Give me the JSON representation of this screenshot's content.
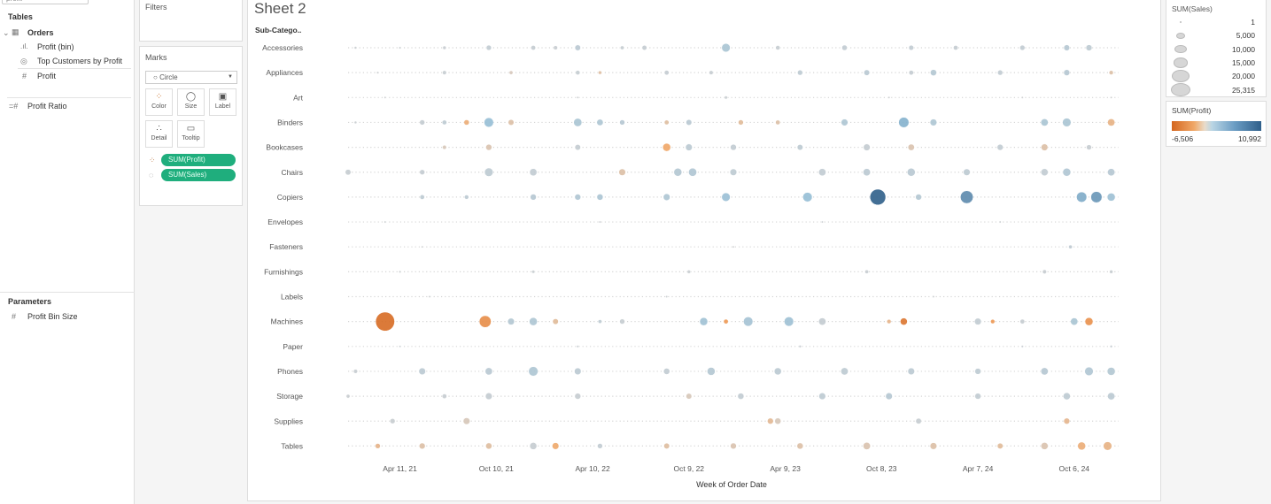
{
  "data_pane": {
    "search_value": "profit",
    "tables_heading": "Tables",
    "table_name": "Orders",
    "fields": [
      {
        "label": "Profit (bin)",
        "icon": "bin-bar-icon"
      },
      {
        "label": "Top Customers by Profit",
        "icon": "set-icon"
      },
      {
        "label": "Profit",
        "icon": "measure-hash-icon"
      }
    ],
    "calc_field": "Profit Ratio",
    "parameters_heading": "Parameters",
    "parameter": "Profit Bin Size"
  },
  "filters": {
    "title": "Filters"
  },
  "marks": {
    "title": "Marks",
    "mark_type": "Circle",
    "buttons": [
      "Color",
      "Size",
      "Label",
      "Detail",
      "Tooltip"
    ],
    "pills": [
      {
        "label": "SUM(Profit)",
        "icon": "color-icon"
      },
      {
        "label": "SUM(Sales)",
        "icon": "size-icon"
      }
    ]
  },
  "sheet": {
    "title": "Sheet 2",
    "row_header": "Sub-Catego.."
  },
  "legends": {
    "size_title": "SUM(Sales)",
    "size_values": [
      "1",
      "5,000",
      "10,000",
      "15,000",
      "20,000",
      "25,315"
    ],
    "color_title": "SUM(Profit)",
    "color_min": "-6,506",
    "color_max": "10,992",
    "colors": {
      "negative": "#d4661f",
      "neutral": "#cfcfcf",
      "positive": "#2f5f8a"
    }
  },
  "chart_data": {
    "type": "scatter",
    "xlabel": "Week of Order Date",
    "ylabel": "Sub-Catego..",
    "x_ticks": [
      "Apr 11, 21",
      "Oct 10, 21",
      "Apr 10, 22",
      "Oct 9, 22",
      "Apr 9, 23",
      "Oct 8, 23",
      "Apr 7, 24",
      "Oct 6, 24"
    ],
    "x_tick_dates": [
      "2021-04-11",
      "2021-10-10",
      "2022-04-10",
      "2022-10-09",
      "2023-04-09",
      "2023-10-08",
      "2024-04-07",
      "2024-10-06"
    ],
    "xlim": [
      "2021-01-03",
      "2024-12-29"
    ],
    "size_range": [
      1,
      25315
    ],
    "color_range": [
      -6506,
      10992
    ],
    "fields": [
      "week",
      "sales",
      "profit"
    ],
    "categories": [
      {
        "name": "Accessories",
        "points": [
          [
            "2021-01-17",
            400,
            40
          ],
          [
            "2021-04-11",
            300,
            30
          ],
          [
            "2021-07-04",
            700,
            80
          ],
          [
            "2021-09-26",
            1500,
            200
          ],
          [
            "2021-12-19",
            1200,
            150
          ],
          [
            "2022-01-30",
            900,
            90
          ],
          [
            "2022-03-13",
            1800,
            450
          ],
          [
            "2022-06-05",
            800,
            120
          ],
          [
            "2022-07-17",
            1300,
            160
          ],
          [
            "2022-12-18",
            4000,
            1200
          ],
          [
            "2023-03-26",
            1100,
            100
          ],
          [
            "2023-07-30",
            1600,
            200
          ],
          [
            "2023-12-03",
            1400,
            200
          ],
          [
            "2024-02-25",
            1200,
            150
          ],
          [
            "2024-06-30",
            1500,
            200
          ],
          [
            "2024-09-22",
            1900,
            600
          ],
          [
            "2024-11-03",
            2000,
            300
          ]
        ]
      },
      {
        "name": "Appliances",
        "points": [
          [
            "2021-02-28",
            300,
            20
          ],
          [
            "2021-07-04",
            900,
            100
          ],
          [
            "2021-11-07",
            800,
            -90
          ],
          [
            "2022-03-13",
            1100,
            120
          ],
          [
            "2022-04-24",
            700,
            -400
          ],
          [
            "2022-08-28",
            1200,
            150
          ],
          [
            "2022-11-20",
            900,
            100
          ],
          [
            "2023-05-07",
            1500,
            300
          ],
          [
            "2023-09-10",
            1800,
            500
          ],
          [
            "2023-12-03",
            1200,
            150
          ],
          [
            "2024-01-14",
            2200,
            700
          ],
          [
            "2024-05-19",
            1500,
            200
          ],
          [
            "2024-09-22",
            2000,
            600
          ],
          [
            "2024-12-15",
            1000,
            -300
          ]
        ]
      },
      {
        "name": "Art",
        "points": [
          [
            "2021-03-14",
            80,
            10
          ],
          [
            "2022-03-13",
            120,
            20
          ],
          [
            "2022-12-18",
            600,
            60
          ],
          [
            "2023-10-22",
            150,
            20
          ],
          [
            "2024-06-30",
            120,
            15
          ],
          [
            "2024-12-15",
            100,
            10
          ]
        ]
      },
      {
        "name": "Binders",
        "points": [
          [
            "2021-01-17",
            400,
            40
          ],
          [
            "2021-05-23",
            1500,
            150
          ],
          [
            "2021-07-04",
            1200,
            300
          ],
          [
            "2021-08-15",
            1600,
            -1200
          ],
          [
            "2021-09-26",
            5000,
            2500
          ],
          [
            "2021-11-07",
            1800,
            -300
          ],
          [
            "2022-03-13",
            3800,
            1200
          ],
          [
            "2022-04-24",
            2300,
            1000
          ],
          [
            "2022-06-05",
            1500,
            600
          ],
          [
            "2022-08-28",
            1200,
            -400
          ],
          [
            "2022-10-09",
            1800,
            500
          ],
          [
            "2023-01-15",
            1500,
            -500
          ],
          [
            "2023-03-26",
            1200,
            -300
          ],
          [
            "2023-07-30",
            2500,
            1000
          ],
          [
            "2023-11-19",
            6000,
            3800
          ],
          [
            "2024-01-14",
            2500,
            1000
          ],
          [
            "2024-08-11",
            3000,
            1200
          ],
          [
            "2024-09-22",
            4000,
            1200
          ],
          [
            "2024-12-15",
            3000,
            -900
          ]
        ]
      },
      {
        "name": "Bookcases",
        "points": [
          [
            "2021-07-04",
            900,
            -100
          ],
          [
            "2021-09-26",
            2000,
            -200
          ],
          [
            "2022-03-13",
            1800,
            150
          ],
          [
            "2022-08-28",
            3500,
            -1600
          ],
          [
            "2022-10-09",
            2500,
            400
          ],
          [
            "2023-01-01",
            2000,
            200
          ],
          [
            "2023-05-07",
            1800,
            300
          ],
          [
            "2023-09-10",
            2500,
            150
          ],
          [
            "2023-12-03",
            2300,
            -200
          ],
          [
            "2024-05-19",
            2000,
            200
          ],
          [
            "2024-08-11",
            2500,
            -300
          ],
          [
            "2024-11-03",
            1500,
            100
          ]
        ]
      },
      {
        "name": "Chairs",
        "points": [
          [
            "2021-01-03",
            1800,
            100
          ],
          [
            "2021-05-23",
            1500,
            150
          ],
          [
            "2021-09-26",
            4000,
            300
          ],
          [
            "2021-12-19",
            3000,
            200
          ],
          [
            "2022-06-05",
            2500,
            -300
          ],
          [
            "2022-09-18",
            3500,
            700
          ],
          [
            "2022-10-16",
            3800,
            900
          ],
          [
            "2023-01-01",
            2500,
            300
          ],
          [
            "2023-06-18",
            3000,
            200
          ],
          [
            "2023-09-10",
            3000,
            400
          ],
          [
            "2023-12-03",
            3500,
            500
          ],
          [
            "2024-03-17",
            2500,
            300
          ],
          [
            "2024-08-11",
            2800,
            200
          ],
          [
            "2024-09-22",
            3500,
            900
          ],
          [
            "2024-12-15",
            3000,
            600
          ]
        ]
      },
      {
        "name": "Copiers",
        "points": [
          [
            "2021-05-23",
            1200,
            300
          ],
          [
            "2021-08-15",
            1000,
            400
          ],
          [
            "2021-12-19",
            2000,
            600
          ],
          [
            "2022-03-13",
            2000,
            900
          ],
          [
            "2022-04-24",
            2200,
            1100
          ],
          [
            "2022-08-28",
            2500,
            1000
          ],
          [
            "2022-12-18",
            4000,
            2200
          ],
          [
            "2023-05-21",
            5000,
            2600
          ],
          [
            "2023-10-01",
            14000,
            10992
          ],
          [
            "2023-12-17",
            2000,
            700
          ],
          [
            "2024-03-17",
            9000,
            6800
          ],
          [
            "2024-10-20",
            6000,
            4200
          ],
          [
            "2024-11-17",
            7000,
            5800
          ],
          [
            "2024-12-15",
            3500,
            2000
          ]
        ]
      },
      {
        "name": "Envelopes",
        "points": [
          [
            "2021-03-14",
            150,
            30
          ],
          [
            "2022-04-24",
            180,
            40
          ],
          [
            "2023-06-18",
            200,
            40
          ],
          [
            "2024-05-19",
            160,
            30
          ]
        ]
      },
      {
        "name": "Fasteners",
        "points": [
          [
            "2021-05-23",
            40,
            10
          ],
          [
            "2023-01-01",
            50,
            10
          ],
          [
            "2024-09-29",
            800,
            250
          ]
        ]
      },
      {
        "name": "Furnishings",
        "points": [
          [
            "2021-04-11",
            300,
            30
          ],
          [
            "2021-12-19",
            600,
            50
          ],
          [
            "2022-10-09",
            700,
            60
          ],
          [
            "2023-09-10",
            800,
            80
          ],
          [
            "2024-08-11",
            900,
            80
          ],
          [
            "2024-12-15",
            700,
            60
          ]
        ]
      },
      {
        "name": "Labels",
        "points": [
          [
            "2021-06-06",
            60,
            20
          ],
          [
            "2022-08-28",
            80,
            30
          ],
          [
            "2024-01-14",
            70,
            20
          ]
        ]
      },
      {
        "name": "Machines",
        "points": [
          [
            "2021-03-14",
            20000,
            -6000
          ],
          [
            "2021-09-19",
            8000,
            -3200
          ],
          [
            "2021-11-07",
            2500,
            700
          ],
          [
            "2021-12-19",
            3500,
            1000
          ],
          [
            "2022-01-30",
            1800,
            -500
          ],
          [
            "2022-04-24",
            800,
            300
          ],
          [
            "2022-06-05",
            1500,
            100
          ],
          [
            "2022-11-06",
            3500,
            1800
          ],
          [
            "2022-12-18",
            1200,
            -2500
          ],
          [
            "2023-01-29",
            5000,
            1500
          ],
          [
            "2023-04-16",
            5000,
            2000
          ],
          [
            "2023-06-18",
            3000,
            150
          ],
          [
            "2023-10-22",
            1000,
            -800
          ],
          [
            "2023-11-19",
            2800,
            -5000
          ],
          [
            "2024-04-07",
            2500,
            200
          ],
          [
            "2024-05-05",
            1000,
            -2500
          ],
          [
            "2024-06-30",
            1200,
            100
          ],
          [
            "2024-10-06",
            3000,
            1200
          ],
          [
            "2024-11-03",
            3500,
            -3000
          ]
        ]
      },
      {
        "name": "Paper",
        "points": [
          [
            "2021-04-11",
            200,
            60
          ],
          [
            "2022-03-13",
            300,
            80
          ],
          [
            "2023-05-07",
            350,
            90
          ],
          [
            "2024-06-30",
            300,
            80
          ],
          [
            "2024-12-15",
            350,
            100
          ]
        ]
      },
      {
        "name": "Phones",
        "points": [
          [
            "2021-01-17",
            900,
            80
          ],
          [
            "2021-05-23",
            2500,
            400
          ],
          [
            "2021-09-26",
            3000,
            500
          ],
          [
            "2021-12-19",
            5000,
            1000
          ],
          [
            "2022-03-13",
            2500,
            400
          ],
          [
            "2022-08-28",
            2200,
            200
          ],
          [
            "2022-11-20",
            3500,
            700
          ],
          [
            "2023-03-26",
            2800,
            400
          ],
          [
            "2023-07-30",
            3000,
            300
          ],
          [
            "2023-12-03",
            2500,
            400
          ],
          [
            "2024-04-07",
            2000,
            300
          ],
          [
            "2024-08-11",
            3000,
            600
          ],
          [
            "2024-11-03",
            4000,
            900
          ],
          [
            "2024-12-15",
            3500,
            800
          ]
        ]
      },
      {
        "name": "Storage",
        "points": [
          [
            "2021-01-03",
            800,
            40
          ],
          [
            "2021-07-04",
            1200,
            80
          ],
          [
            "2021-09-26",
            2500,
            150
          ],
          [
            "2022-03-13",
            2000,
            100
          ],
          [
            "2022-10-09",
            1800,
            -100
          ],
          [
            "2023-01-15",
            2200,
            200
          ],
          [
            "2023-06-18",
            2500,
            300
          ],
          [
            "2023-10-22",
            2500,
            600
          ],
          [
            "2024-04-07",
            2000,
            200
          ],
          [
            "2024-09-22",
            2800,
            300
          ],
          [
            "2024-12-15",
            3000,
            400
          ]
        ]
      },
      {
        "name": "Supplies",
        "points": [
          [
            "2021-03-28",
            1500,
            50
          ],
          [
            "2021-08-15",
            2500,
            -100
          ],
          [
            "2023-03-12",
            2000,
            -600
          ],
          [
            "2023-03-26",
            2200,
            -100
          ],
          [
            "2023-12-17",
            1800,
            100
          ],
          [
            "2024-09-22",
            2000,
            -700
          ]
        ]
      },
      {
        "name": "Tables",
        "points": [
          [
            "2021-02-28",
            1500,
            -800
          ],
          [
            "2021-05-23",
            2000,
            -300
          ],
          [
            "2021-09-26",
            2200,
            -400
          ],
          [
            "2021-12-19",
            2800,
            100
          ],
          [
            "2022-01-30",
            2500,
            -1500
          ],
          [
            "2022-04-24",
            1500,
            200
          ],
          [
            "2022-08-28",
            1800,
            -400
          ],
          [
            "2023-01-01",
            2000,
            -200
          ],
          [
            "2023-05-07",
            2200,
            -300
          ],
          [
            "2023-09-10",
            3000,
            -200
          ],
          [
            "2024-01-14",
            2500,
            -300
          ],
          [
            "2024-05-19",
            1800,
            -500
          ],
          [
            "2024-08-11",
            2800,
            -200
          ],
          [
            "2024-10-20",
            3500,
            -1200
          ],
          [
            "2024-12-08",
            4000,
            -900
          ]
        ]
      }
    ]
  }
}
